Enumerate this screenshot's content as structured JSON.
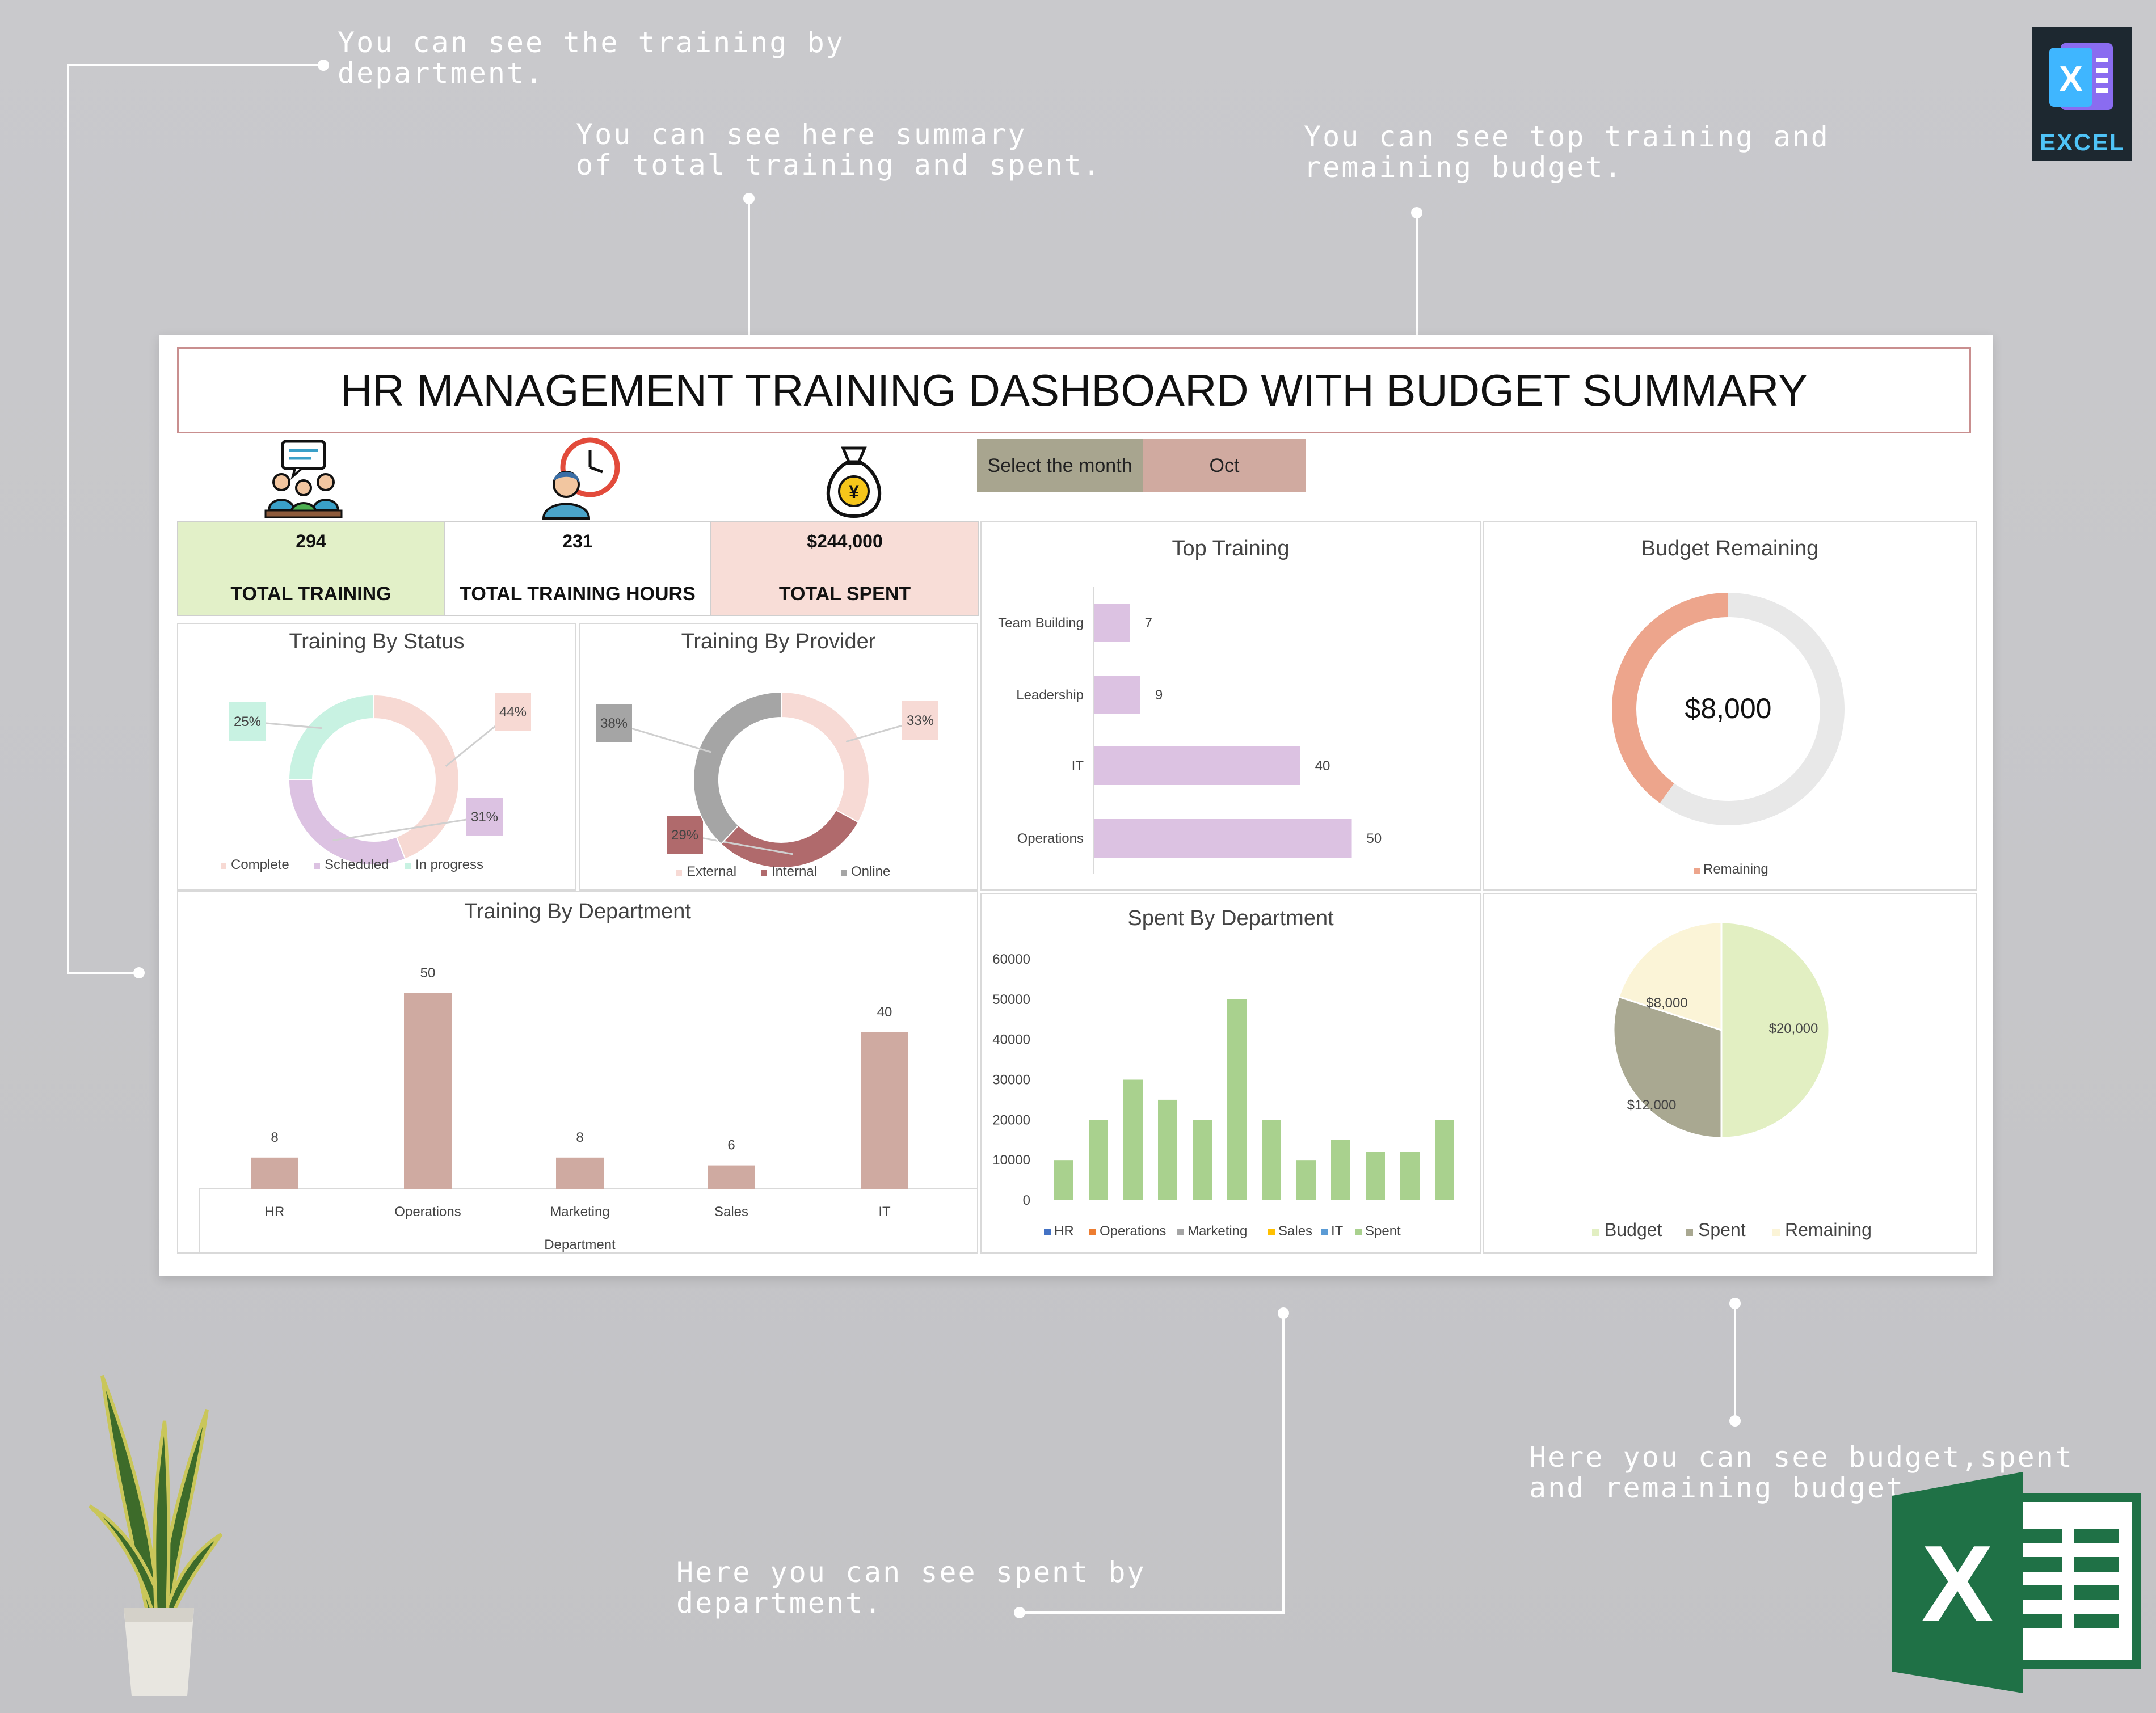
{
  "annotations": {
    "dept": "You can see the training by\ndepartment.",
    "summary": "You can see here summary\nof total training and spent.",
    "top": "You can see top training and\nremaining budget.",
    "budget": "Here you can see budget,spent\nand remaining budget.",
    "spent": "Here you can see spent by\ndepartment."
  },
  "excel_badge": {
    "label": "EXCEL"
  },
  "dashboard": {
    "title": "HR MANAGEMENT TRAINING DASHBOARD WITH BUDGET SUMMARY",
    "month_selector": {
      "label": "Select the month",
      "value": "Oct"
    },
    "kpis": [
      {
        "value": "294",
        "label": "TOTAL TRAINING"
      },
      {
        "value": "231",
        "label": "TOTAL TRAINING HOURS"
      },
      {
        "value": "$244,000",
        "label": "TOTAL SPENT"
      }
    ],
    "panels": {
      "status": "Training By Status",
      "provider": "Training By Provider",
      "top": "Top Training",
      "budget_remaining": "Budget Remaining",
      "department": "Training By Department",
      "spent": "Spent By Department"
    }
  },
  "colors": {
    "complete": "#f7d9d3",
    "scheduled": "#dcc2e2",
    "in_progress": "#c8f2e2",
    "external": "#f7dad5",
    "internal": "#b06a6c",
    "online": "#a5a5a5",
    "top_bar": "#dcc2e2",
    "dept_bar": "#cfaaa1",
    "spent_bar": "#a9d18e",
    "budget": "#e2efc2",
    "spent": "#a9a891",
    "remaining": "#fbf4d7",
    "donut_remaining": "#eda58c",
    "donut_track": "#e8e8e8"
  },
  "chart_data": [
    {
      "type": "pie",
      "title": "Training By Status",
      "categories": [
        "Complete",
        "Scheduled",
        "In progress"
      ],
      "values": [
        44,
        31,
        25
      ],
      "labels": [
        "44%",
        "31%",
        "25%"
      ],
      "legend": "bottom"
    },
    {
      "type": "pie",
      "title": "Training By Provider",
      "categories": [
        "External",
        "Internal",
        "Online"
      ],
      "values": [
        33,
        29,
        38
      ],
      "labels": [
        "33%",
        "29%",
        "38%"
      ],
      "legend": "bottom"
    },
    {
      "type": "bar",
      "title": "Top Training",
      "orientation": "horizontal",
      "categories": [
        "Team Building",
        "Leadership",
        "IT",
        "Operations"
      ],
      "values": [
        7,
        9,
        40,
        50
      ]
    },
    {
      "type": "pie",
      "title": "Budget Remaining",
      "categories": [
        "Remaining"
      ],
      "center_label": "$8,000",
      "remaining_fraction": 0.4,
      "legend": "bottom"
    },
    {
      "type": "bar",
      "title": "Training By Department",
      "categories": [
        "HR",
        "Operations",
        "Marketing",
        "Sales",
        "IT"
      ],
      "values": [
        8,
        50,
        8,
        6,
        40
      ],
      "xlabel": "Department"
    },
    {
      "type": "bar",
      "title": "Spent By Department",
      "series_legend": [
        "HR",
        "Operations",
        "Marketing",
        "Sales",
        "IT",
        "Spent"
      ],
      "values": [
        10000,
        20000,
        30000,
        25000,
        20000,
        50000,
        20000,
        10000,
        15000,
        12000,
        12000,
        20000
      ],
      "ylim": [
        0,
        60000
      ],
      "yticks": [
        "0",
        "10000",
        "20000",
        "30000",
        "40000",
        "50000",
        "60000"
      ],
      "legend": "bottom"
    },
    {
      "type": "pie",
      "categories": [
        "Budget",
        "Spent",
        "Remaining"
      ],
      "values": [
        20000,
        12000,
        8000
      ],
      "labels": [
        "$20,000",
        "$12,000",
        "$8,000"
      ],
      "legend": "bottom"
    }
  ]
}
